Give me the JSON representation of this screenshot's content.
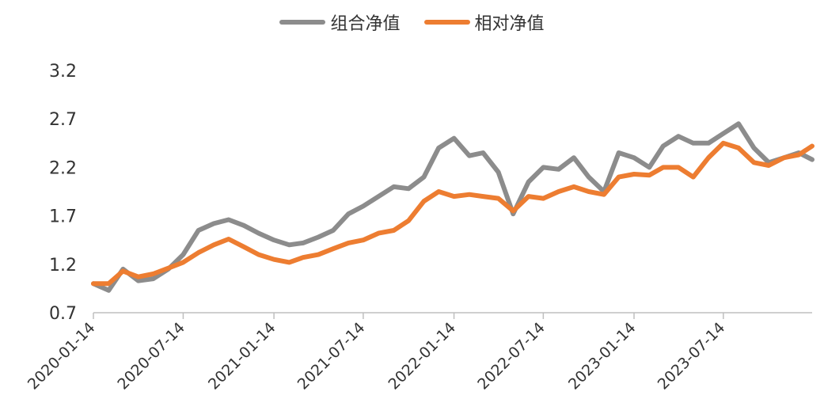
{
  "chart_data": {
    "type": "line",
    "title": "",
    "xlabel": "",
    "ylabel": "",
    "ylim": [
      0.7,
      3.2
    ],
    "yticks": [
      "0.7",
      "1.2",
      "1.7",
      "2.2",
      "2.7",
      "3.2"
    ],
    "xticks": [
      "2020-01-14",
      "2020-07-14",
      "2021-01-14",
      "2021-07-14",
      "2022-01-14",
      "2022-07-14",
      "2023-01-14",
      "2023-07-14"
    ],
    "grid": false,
    "legend_position": "top-center",
    "x": [
      "2020-01-14",
      "2020-02-14",
      "2020-03-14",
      "2020-04-14",
      "2020-05-14",
      "2020-06-14",
      "2020-07-14",
      "2020-08-14",
      "2020-09-14",
      "2020-10-14",
      "2020-11-14",
      "2020-12-14",
      "2021-01-14",
      "2021-02-14",
      "2021-03-14",
      "2021-04-14",
      "2021-05-14",
      "2021-06-14",
      "2021-07-14",
      "2021-08-14",
      "2021-09-14",
      "2021-10-14",
      "2021-11-14",
      "2021-12-14",
      "2022-01-14",
      "2022-02-14",
      "2022-03-14",
      "2022-04-14",
      "2022-05-14",
      "2022-06-14",
      "2022-07-14",
      "2022-08-14",
      "2022-09-14",
      "2022-10-14",
      "2022-11-14",
      "2022-12-14",
      "2023-01-14",
      "2023-02-14",
      "2023-03-14",
      "2023-04-14",
      "2023-05-14",
      "2023-06-14",
      "2023-07-14",
      "2023-08-14",
      "2023-09-14",
      "2023-10-14",
      "2023-11-14",
      "2023-12-14",
      "2024-01-10"
    ],
    "series": [
      {
        "name": "组合净值",
        "color": "#8c8c8c",
        "values": [
          1.0,
          0.93,
          1.15,
          1.03,
          1.05,
          1.15,
          1.3,
          1.55,
          1.62,
          1.66,
          1.6,
          1.52,
          1.45,
          1.4,
          1.42,
          1.48,
          1.55,
          1.72,
          1.8,
          1.9,
          2.0,
          1.98,
          2.1,
          2.4,
          2.5,
          2.32,
          2.35,
          2.15,
          1.72,
          2.05,
          2.2,
          2.18,
          2.3,
          2.1,
          1.95,
          2.35,
          2.3,
          2.2,
          2.42,
          2.52,
          2.45,
          2.45,
          2.55,
          2.65,
          2.4,
          2.25,
          2.3,
          2.35,
          2.28
        ]
      },
      {
        "name": "相对净值",
        "color": "#ed7d31",
        "values": [
          1.0,
          1.0,
          1.13,
          1.07,
          1.1,
          1.16,
          1.22,
          1.32,
          1.4,
          1.46,
          1.38,
          1.3,
          1.25,
          1.22,
          1.27,
          1.3,
          1.36,
          1.42,
          1.45,
          1.52,
          1.55,
          1.65,
          1.85,
          1.95,
          1.9,
          1.92,
          1.9,
          1.88,
          1.75,
          1.9,
          1.88,
          1.95,
          2.0,
          1.95,
          1.92,
          2.1,
          2.13,
          2.12,
          2.2,
          2.2,
          2.1,
          2.3,
          2.45,
          2.4,
          2.25,
          2.22,
          2.3,
          2.33,
          2.42
        ]
      }
    ]
  }
}
